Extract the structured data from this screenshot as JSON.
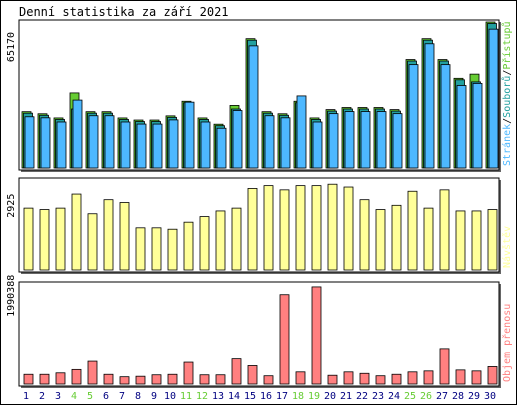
{
  "title": "Denní statistika za září 2021",
  "colors": {
    "hits": "#4db8ff",
    "files": "#22a0a0",
    "pages": "#66cc33",
    "visits": "#ffff99",
    "kbytes": "#ff8080",
    "weekend": "#66cc33",
    "weekday": "#000080"
  },
  "chart_data": [
    {
      "type": "bar",
      "title": "Denní statistika za září 2021",
      "panel": "hits",
      "ytick_label": "65170",
      "ylim": [
        0,
        70000
      ],
      "legend": [
        {
          "name": "Přístupů",
          "color": "#66cc33"
        },
        {
          "name": "Souborů",
          "color": "#22a0a0"
        },
        {
          "name": "Stránek",
          "color": "#4db8ff"
        }
      ],
      "legend_placement": "right",
      "x": [
        1,
        2,
        3,
        4,
        5,
        6,
        7,
        8,
        9,
        10,
        11,
        12,
        13,
        14,
        15,
        16,
        17,
        18,
        19,
        20,
        21,
        22,
        23,
        24,
        25,
        26,
        27,
        28,
        29,
        30
      ],
      "series": [
        {
          "name": "Přístupů",
          "values": [
            27000,
            26000,
            24000,
            36000,
            27000,
            27000,
            24000,
            23000,
            23000,
            25000,
            32000,
            24000,
            21000,
            30000,
            62000,
            27000,
            26000,
            32000,
            24000,
            28000,
            29000,
            29000,
            29000,
            28000,
            52000,
            62000,
            52000,
            43000,
            45000,
            70000
          ]
        },
        {
          "name": "Souborů",
          "values": [
            27000,
            26000,
            24000,
            29000,
            27000,
            27000,
            24000,
            23000,
            23000,
            25000,
            32000,
            24000,
            21000,
            29000,
            62000,
            27000,
            26000,
            32000,
            24000,
            28000,
            29000,
            29000,
            29000,
            28000,
            52000,
            62000,
            52000,
            43000,
            42000,
            70000
          ]
        },
        {
          "name": "Stránek",
          "values": [
            26000,
            25500,
            23500,
            34000,
            26500,
            26500,
            23500,
            22500,
            22500,
            24500,
            33000,
            23500,
            20500,
            29000,
            60000,
            26500,
            25500,
            36000,
            23500,
            27500,
            28500,
            28500,
            28500,
            27500,
            51000,
            61000,
            51000,
            41000,
            42000,
            68000
          ]
        }
      ]
    },
    {
      "type": "bar",
      "panel": "visits",
      "ytick_label": "2925",
      "ylim": [
        0,
        3200
      ],
      "legend": [
        {
          "name": "Návštěv",
          "color": "#ffff99"
        }
      ],
      "legend_placement": "right",
      "x": [
        1,
        2,
        3,
        4,
        5,
        6,
        7,
        8,
        9,
        10,
        11,
        12,
        13,
        14,
        15,
        16,
        17,
        18,
        19,
        20,
        21,
        22,
        23,
        24,
        25,
        26,
        27,
        28,
        29,
        30
      ],
      "series": [
        {
          "name": "Návštěv",
          "values": [
            2200,
            2150,
            2200,
            2700,
            2000,
            2500,
            2400,
            1500,
            1500,
            1450,
            1700,
            1900,
            2100,
            2200,
            2900,
            3000,
            2850,
            3000,
            3000,
            3050,
            2950,
            2500,
            2150,
            2300,
            2800,
            2200,
            2850,
            2100,
            2100,
            2150
          ]
        }
      ]
    },
    {
      "type": "bar",
      "panel": "kbytes",
      "ytick_label": "1990388",
      "ylim": [
        0,
        2050000
      ],
      "legend": [
        {
          "name": "Objem přenosu",
          "color": "#ff8080"
        }
      ],
      "legend_placement": "right",
      "x": [
        1,
        2,
        3,
        4,
        5,
        6,
        7,
        8,
        9,
        10,
        11,
        12,
        13,
        14,
        15,
        16,
        17,
        18,
        19,
        20,
        21,
        22,
        23,
        24,
        25,
        26,
        27,
        28,
        29,
        30
      ],
      "x_labels": [
        "1",
        "2",
        "3",
        "4",
        "5",
        "6",
        "7",
        "8",
        "9",
        "10",
        "11",
        "12",
        "13",
        "14",
        "15",
        "16",
        "17",
        "18",
        "19",
        "20",
        "21",
        "22",
        "23",
        "24",
        "25",
        "26",
        "27",
        "28",
        "29",
        "30"
      ],
      "weekend_days": [
        4,
        5,
        11,
        12,
        18,
        19,
        25,
        26
      ],
      "series": [
        {
          "name": "Objem přenosu",
          "values": [
            200000,
            200000,
            230000,
            300000,
            470000,
            200000,
            150000,
            160000,
            190000,
            200000,
            450000,
            190000,
            190000,
            520000,
            380000,
            170000,
            1830000,
            250000,
            1990000,
            180000,
            250000,
            220000,
            170000,
            200000,
            250000,
            270000,
            720000,
            290000,
            270000,
            360000
          ]
        }
      ]
    }
  ]
}
